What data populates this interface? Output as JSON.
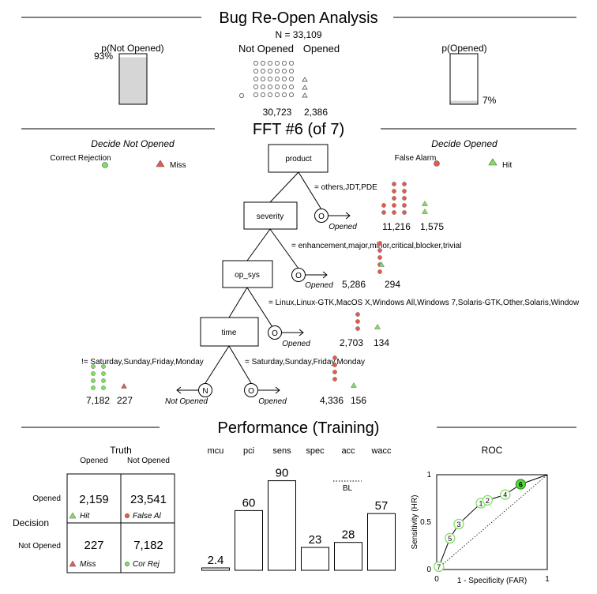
{
  "header": {
    "title": "Bug Re-Open Analysis",
    "n_label": "N = 33,109",
    "p_not_label": "p(Not Opened)",
    "p_not_value": "93%",
    "p_not_fraction": 0.93,
    "p_open_label": "p(Opened)",
    "p_open_value": "7%",
    "p_open_fraction": 0.07,
    "col_not": "Not Opened",
    "col_open": "Opened",
    "count_not": "30,723",
    "count_open": "2,386"
  },
  "tree": {
    "title": "FFT #6 (of 7)",
    "decide_not": "Decide Not Opened",
    "decide_open": "Decide Opened",
    "legend": {
      "cr": "Correct Rejection",
      "miss": "Miss",
      "fa": "False Alarm",
      "hit": "Hit"
    },
    "colors": {
      "green": "#7fe060",
      "red": "#e8594d"
    },
    "nodes": {
      "n1": "product",
      "n2": "severity",
      "n3": "op_sys",
      "n4": "time"
    },
    "exit_symbol_open": "O",
    "exit_symbol_not": "N",
    "exit_open": "Opened",
    "exit_not": "Not Opened",
    "cond1": "= others,JDT,PDE",
    "cond2": "= enhancement,major,minor,critical,blocker,trivial",
    "cond3": "= Linux,Linux-GTK,MacOS X,Windows All,Windows 7,Solaris-GTK,Other,Solaris,Window",
    "cond4": "= Saturday,Sunday,Friday,Monday",
    "cond_not": "!= Saturday,Sunday,Friday,Monday",
    "leaf1": {
      "red": "11,216",
      "green": "1,575"
    },
    "leaf2": {
      "red": "5,286",
      "green": "294"
    },
    "leaf3": {
      "red": "2,703",
      "green": "134"
    },
    "leaf4": {
      "red": "4,336",
      "green": "156"
    },
    "leaf_not": {
      "green": "7,182",
      "red": "227"
    }
  },
  "performance": {
    "title": "Performance (Training)",
    "truth_label": "Truth",
    "truth_open": "Opened",
    "truth_not": "Not Opened",
    "decision_label": "Decision",
    "dec_open": "Opened",
    "dec_not": "Not Opened",
    "hit_count": "2,159",
    "hit_label": "Hit",
    "fa_count": "23,541",
    "fa_label": "False Al",
    "miss_count": "227",
    "miss_label": "Miss",
    "cr_count": "7,182",
    "cr_label": "Cor Rej",
    "baseline_label": "BL",
    "roc_title": "ROC",
    "roc_xlabel": "1 - Specificity (FAR)",
    "roc_ylabel": "Sensitivity (HR)"
  },
  "chart_data": {
    "type": "bar",
    "categories": [
      "mcu",
      "pci",
      "sens",
      "spec",
      "acc",
      "wacc"
    ],
    "values": [
      2.4,
      60,
      90,
      23,
      28,
      57
    ],
    "value_labels": [
      "2.4",
      "60",
      "90",
      "23",
      "28",
      "57"
    ],
    "ylim": [
      0,
      100
    ],
    "roc": {
      "type": "scatter",
      "x_ticks": [
        "0",
        "1"
      ],
      "y_ticks": [
        "0",
        "0.5",
        "1"
      ],
      "xlim": [
        0,
        1
      ],
      "ylim": [
        0,
        1
      ],
      "points": [
        {
          "label": "7",
          "x": 0.02,
          "y": 0.03
        },
        {
          "label": "5",
          "x": 0.12,
          "y": 0.33
        },
        {
          "label": "3",
          "x": 0.2,
          "y": 0.48
        },
        {
          "label": "1",
          "x": 0.4,
          "y": 0.7
        },
        {
          "label": "2",
          "x": 0.46,
          "y": 0.73
        },
        {
          "label": "4",
          "x": 0.62,
          "y": 0.79
        },
        {
          "label": "6",
          "x": 0.76,
          "y": 0.9
        }
      ],
      "highlight": "6"
    }
  }
}
